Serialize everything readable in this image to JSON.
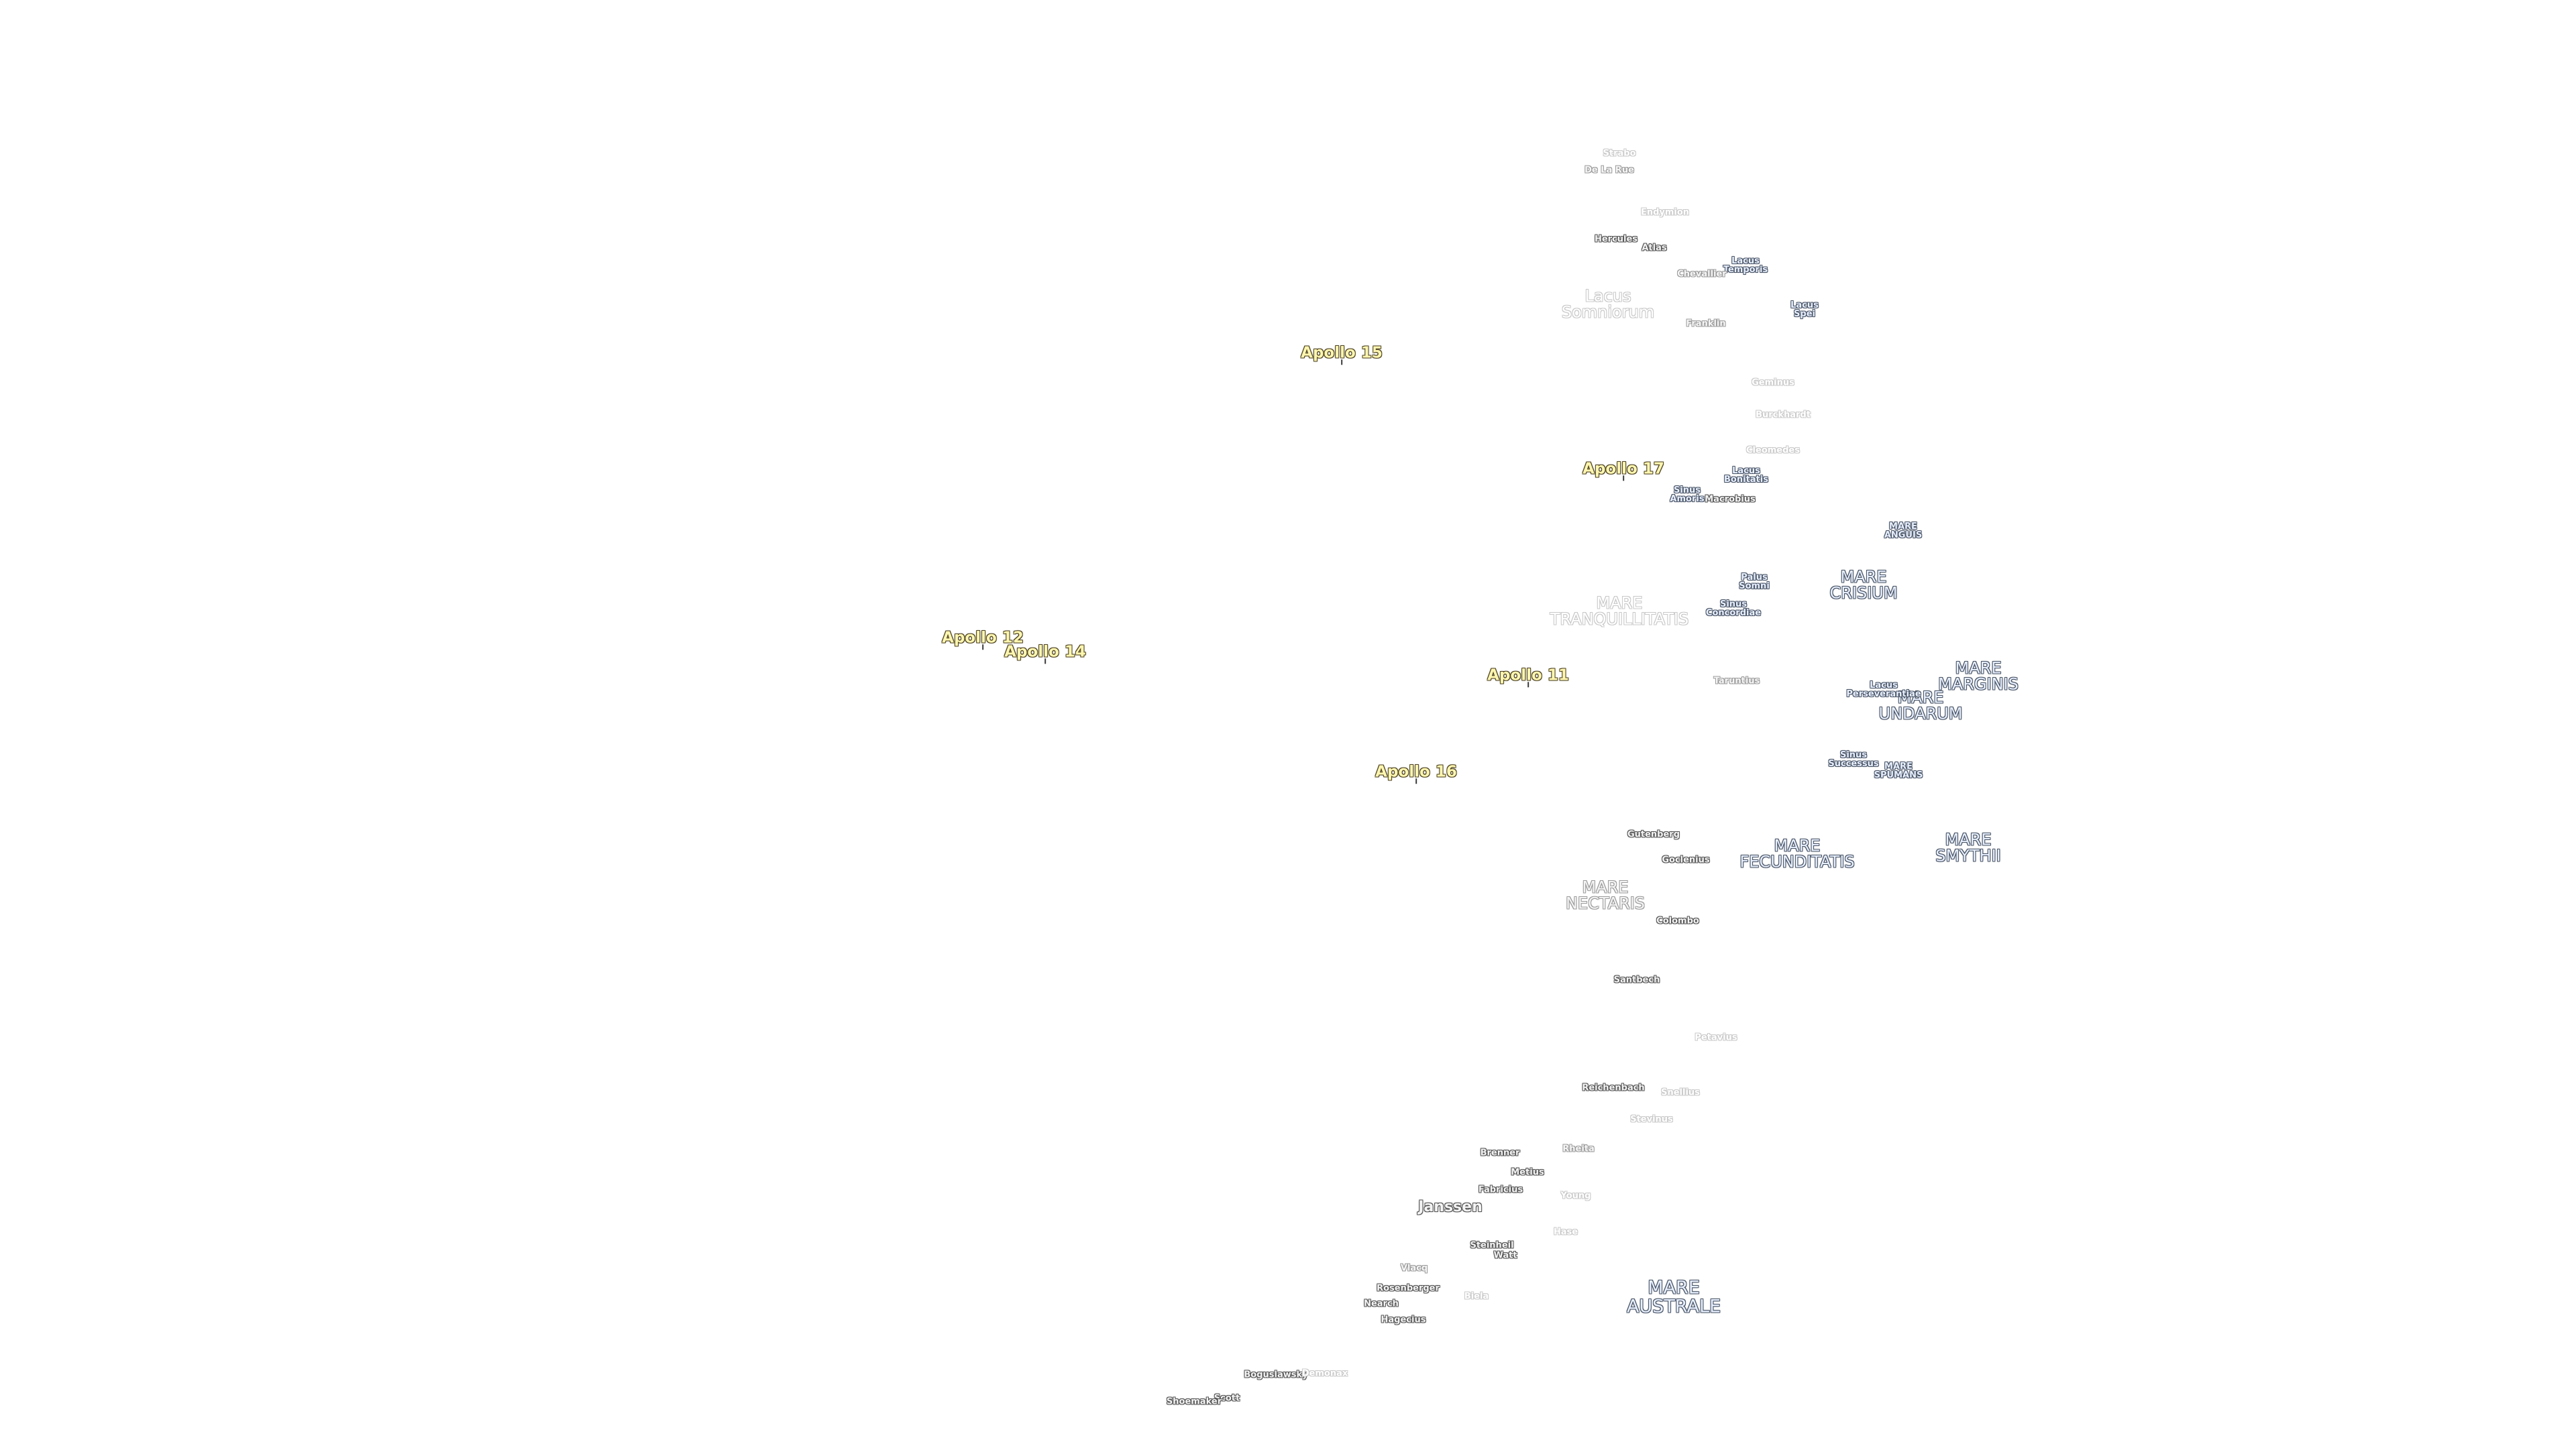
{
  "map": {
    "apollo_sites": [
      {
        "name": "Apollo 15"
      },
      {
        "name": "Apollo 17"
      },
      {
        "name": "Apollo 12"
      },
      {
        "name": "Apollo 14"
      },
      {
        "name": "Apollo 11"
      },
      {
        "name": "Apollo 16"
      }
    ],
    "maria": [
      {
        "name": "MARE\nTRANQUILLITATIS",
        "style": "faint"
      },
      {
        "name": "MARE\nCRISIUM",
        "style": "normal"
      },
      {
        "name": "MARE\nANGUIS",
        "style": "small"
      },
      {
        "name": "MARE\nMARGINIS",
        "style": "normal"
      },
      {
        "name": "MARE\nUNDARUM",
        "style": "normal"
      },
      {
        "name": "MARE\nSPUMANS",
        "style": "small"
      },
      {
        "name": "MARE\nFECUNDITATIS",
        "style": "normal"
      },
      {
        "name": "MARE\nSMYTHII",
        "style": "normal"
      },
      {
        "name": "MARE\nNECTARIS",
        "style": "mid"
      },
      {
        "name": "MARE\nAUSTRALE",
        "style": "large"
      },
      {
        "name": "Lacus\nSomniorum",
        "style": "faint"
      },
      {
        "name": "Lacus\nTemporis",
        "style": "small"
      },
      {
        "name": "Lacus\nSpei",
        "style": "small"
      },
      {
        "name": "Lacus\nBonitatis",
        "style": "small"
      },
      {
        "name": "Sinus\nAmoris",
        "style": "small"
      },
      {
        "name": "Palus\nSomni",
        "style": "small"
      },
      {
        "name": "Sinus\nConcordiae",
        "style": "small"
      },
      {
        "name": "Lacus\nPerseverantiae",
        "style": "small"
      },
      {
        "name": "Sinus\nSuccessus",
        "style": "small"
      }
    ],
    "craters": [
      {
        "name": "Strabo",
        "style": "faint"
      },
      {
        "name": "De La Rue",
        "style": "mid"
      },
      {
        "name": "Endymion",
        "style": "faint"
      },
      {
        "name": "Hercules",
        "style": "normal"
      },
      {
        "name": "Atlas",
        "style": "normal"
      },
      {
        "name": "Chevallier",
        "style": "mid"
      },
      {
        "name": "Franklin",
        "style": "mid"
      },
      {
        "name": "Geminus",
        "style": "faint"
      },
      {
        "name": "Burckhardt",
        "style": "faint"
      },
      {
        "name": "Cleomedes",
        "style": "faint"
      },
      {
        "name": "Macrobius",
        "style": "normal"
      },
      {
        "name": "Taruntius",
        "style": "mid"
      },
      {
        "name": "Gutenberg",
        "style": "normal"
      },
      {
        "name": "Goclenius",
        "style": "normal"
      },
      {
        "name": "Colombo",
        "style": "normal"
      },
      {
        "name": "Santbech",
        "style": "normal"
      },
      {
        "name": "Petavius",
        "style": "faint"
      },
      {
        "name": "Reichenbach",
        "style": "normal"
      },
      {
        "name": "Snellius",
        "style": "faint"
      },
      {
        "name": "Stevinus",
        "style": "faint"
      },
      {
        "name": "Brenner",
        "style": "normal"
      },
      {
        "name": "Rheita",
        "style": "mid"
      },
      {
        "name": "Metius",
        "style": "normal"
      },
      {
        "name": "Fabricius",
        "style": "normal"
      },
      {
        "name": "Young",
        "style": "faint"
      },
      {
        "name": "Janssen",
        "style": "big"
      },
      {
        "name": "Hase",
        "style": "faint"
      },
      {
        "name": "Steinheil",
        "style": "normal"
      },
      {
        "name": "Watt",
        "style": "normal"
      },
      {
        "name": "Vlacq",
        "style": "mid"
      },
      {
        "name": "Rosenberger",
        "style": "normal"
      },
      {
        "name": "Biela",
        "style": "faint"
      },
      {
        "name": "Nearch",
        "style": "normal"
      },
      {
        "name": "Hagecius",
        "style": "normal"
      },
      {
        "name": "Boguslawsky",
        "style": "normal"
      },
      {
        "name": "Demonax",
        "style": "faint"
      },
      {
        "name": "Scott",
        "style": "normal"
      },
      {
        "name": "Shoemaker",
        "style": "normal"
      }
    ]
  }
}
